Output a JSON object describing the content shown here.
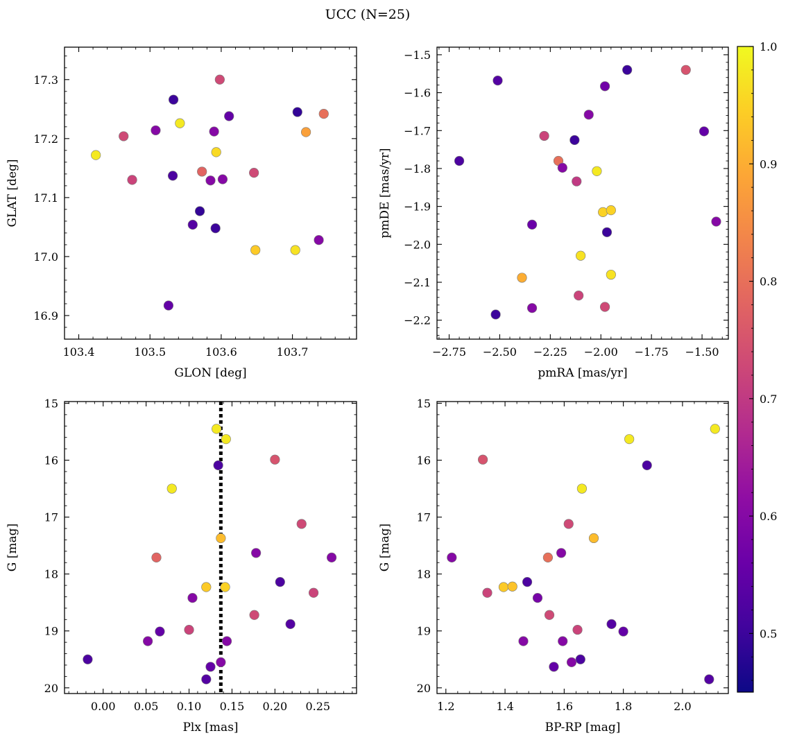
{
  "figure": {
    "title": "UCC (N=25)"
  },
  "colorbar": {
    "range": [
      0.45,
      1.0
    ],
    "ticks": [
      "0.5",
      "0.6",
      "0.7",
      "0.8",
      "0.9",
      "1.0"
    ],
    "colormap": "plasma"
  },
  "chart_data": [
    {
      "type": "scatter",
      "xlabel": "GLON [deg]",
      "ylabel": "GLAT [deg]",
      "xlim": [
        103.38,
        103.79
      ],
      "ylim": [
        16.86,
        17.355
      ],
      "xticks": [
        "103.4",
        "103.5",
        "103.6",
        "103.7"
      ],
      "yticks": [
        "16.9",
        "17.0",
        "17.1",
        "17.2",
        "17.3"
      ],
      "invert_y": false,
      "points": [
        {
          "x": 103.424,
          "y": 17.172,
          "c": 0.98
        },
        {
          "x": 103.463,
          "y": 17.204,
          "c": 0.73
        },
        {
          "x": 103.475,
          "y": 17.13,
          "c": 0.72
        },
        {
          "x": 103.508,
          "y": 17.214,
          "c": 0.6
        },
        {
          "x": 103.526,
          "y": 16.917,
          "c": 0.55
        },
        {
          "x": 103.532,
          "y": 17.137,
          "c": 0.52
        },
        {
          "x": 103.533,
          "y": 17.266,
          "c": 0.5
        },
        {
          "x": 103.542,
          "y": 17.226,
          "c": 0.98
        },
        {
          "x": 103.56,
          "y": 17.054,
          "c": 0.53
        },
        {
          "x": 103.57,
          "y": 17.077,
          "c": 0.49
        },
        {
          "x": 103.573,
          "y": 17.144,
          "c": 0.78
        },
        {
          "x": 103.585,
          "y": 17.129,
          "c": 0.6
        },
        {
          "x": 103.59,
          "y": 17.212,
          "c": 0.6
        },
        {
          "x": 103.592,
          "y": 17.048,
          "c": 0.5
        },
        {
          "x": 103.593,
          "y": 17.177,
          "c": 0.96
        },
        {
          "x": 103.598,
          "y": 17.3,
          "c": 0.73
        },
        {
          "x": 103.602,
          "y": 17.131,
          "c": 0.6
        },
        {
          "x": 103.611,
          "y": 17.238,
          "c": 0.55
        },
        {
          "x": 103.646,
          "y": 17.142,
          "c": 0.73
        },
        {
          "x": 103.648,
          "y": 17.011,
          "c": 0.94
        },
        {
          "x": 103.704,
          "y": 17.011,
          "c": 0.97
        },
        {
          "x": 103.707,
          "y": 17.245,
          "c": 0.49
        },
        {
          "x": 103.719,
          "y": 17.211,
          "c": 0.88
        },
        {
          "x": 103.737,
          "y": 17.028,
          "c": 0.6
        },
        {
          "x": 103.744,
          "y": 17.242,
          "c": 0.8
        }
      ]
    },
    {
      "type": "scatter",
      "xlabel": "pmRA [mas/yr]",
      "ylabel": "pmDE [mas/yr]",
      "xlim": [
        -2.81,
        -1.37
      ],
      "ylim": [
        -2.25,
        -1.48
      ],
      "xticks": [
        "−2.75",
        "−2.50",
        "−2.25",
        "−2.00",
        "−1.75",
        "−1.50"
      ],
      "yticks": [
        "−2.2",
        "−2.1",
        "−2.0",
        "−1.9",
        "−1.8",
        "−1.7",
        "−1.6",
        "−1.5"
      ],
      "invert_y": false,
      "points": [
        {
          "x": -2.7,
          "y": -1.78,
          "c": 0.52
        },
        {
          "x": -2.51,
          "y": -1.568,
          "c": 0.53
        },
        {
          "x": -2.52,
          "y": -2.185,
          "c": 0.5
        },
        {
          "x": -2.39,
          "y": -2.088,
          "c": 0.9
        },
        {
          "x": -2.34,
          "y": -1.948,
          "c": 0.56
        },
        {
          "x": -2.34,
          "y": -2.168,
          "c": 0.6
        },
        {
          "x": -2.28,
          "y": -1.714,
          "c": 0.72
        },
        {
          "x": -2.21,
          "y": -1.78,
          "c": 0.8
        },
        {
          "x": -2.19,
          "y": -1.798,
          "c": 0.6
        },
        {
          "x": -2.13,
          "y": -1.725,
          "c": 0.5
        },
        {
          "x": -2.12,
          "y": -1.834,
          "c": 0.7
        },
        {
          "x": -2.11,
          "y": -2.135,
          "c": 0.72
        },
        {
          "x": -2.1,
          "y": -2.03,
          "c": 0.97
        },
        {
          "x": -2.06,
          "y": -1.658,
          "c": 0.6
        },
        {
          "x": -2.02,
          "y": -1.807,
          "c": 0.98
        },
        {
          "x": -1.99,
          "y": -1.915,
          "c": 0.95
        },
        {
          "x": -1.98,
          "y": -1.583,
          "c": 0.57
        },
        {
          "x": -1.98,
          "y": -2.165,
          "c": 0.73
        },
        {
          "x": -1.97,
          "y": -1.968,
          "c": 0.5
        },
        {
          "x": -1.95,
          "y": -1.91,
          "c": 0.95
        },
        {
          "x": -1.95,
          "y": -2.08,
          "c": 0.97
        },
        {
          "x": -1.87,
          "y": -1.54,
          "c": 0.5
        },
        {
          "x": -1.58,
          "y": -1.54,
          "c": 0.75
        },
        {
          "x": -1.49,
          "y": -1.702,
          "c": 0.55
        },
        {
          "x": -1.43,
          "y": -1.94,
          "c": 0.6
        }
      ]
    },
    {
      "type": "scatter",
      "xlabel": "Plx [mas]",
      "ylabel": "G [mag]",
      "xlim": [
        -0.045,
        0.295
      ],
      "ylim": [
        20.1,
        14.97
      ],
      "xticks": [
        "0.00",
        "0.05",
        "0.10",
        "0.15",
        "0.20",
        "0.25"
      ],
      "yticks": [
        "15",
        "16",
        "17",
        "18",
        "19",
        "20"
      ],
      "invert_y": true,
      "vline": 0.137,
      "points": [
        {
          "x": -0.018,
          "y": 19.5,
          "c": 0.52
        },
        {
          "x": 0.052,
          "y": 19.18,
          "c": 0.6
        },
        {
          "x": 0.062,
          "y": 17.71,
          "c": 0.78
        },
        {
          "x": 0.066,
          "y": 19.01,
          "c": 0.55
        },
        {
          "x": 0.08,
          "y": 16.5,
          "c": 0.98
        },
        {
          "x": 0.1,
          "y": 18.98,
          "c": 0.72
        },
        {
          "x": 0.104,
          "y": 18.42,
          "c": 0.6
        },
        {
          "x": 0.12,
          "y": 18.23,
          "c": 0.94
        },
        {
          "x": 0.12,
          "y": 19.85,
          "c": 0.53
        },
        {
          "x": 0.125,
          "y": 19.63,
          "c": 0.55
        },
        {
          "x": 0.132,
          "y": 15.45,
          "c": 0.98
        },
        {
          "x": 0.134,
          "y": 16.09,
          "c": 0.52
        },
        {
          "x": 0.137,
          "y": 17.37,
          "c": 0.92
        },
        {
          "x": 0.137,
          "y": 19.55,
          "c": 0.6
        },
        {
          "x": 0.142,
          "y": 18.23,
          "c": 0.95
        },
        {
          "x": 0.143,
          "y": 15.63,
          "c": 0.98
        },
        {
          "x": 0.144,
          "y": 19.18,
          "c": 0.6
        },
        {
          "x": 0.176,
          "y": 18.72,
          "c": 0.73
        },
        {
          "x": 0.178,
          "y": 17.63,
          "c": 0.6
        },
        {
          "x": 0.2,
          "y": 15.99,
          "c": 0.75
        },
        {
          "x": 0.206,
          "y": 18.14,
          "c": 0.52
        },
        {
          "x": 0.218,
          "y": 18.88,
          "c": 0.53
        },
        {
          "x": 0.231,
          "y": 17.12,
          "c": 0.73
        },
        {
          "x": 0.245,
          "y": 18.33,
          "c": 0.72
        },
        {
          "x": 0.266,
          "y": 17.71,
          "c": 0.6
        }
      ]
    },
    {
      "type": "scatter",
      "xlabel": "BP-RP [mag]",
      "ylabel": "G [mag]",
      "xlim": [
        1.17,
        2.155
      ],
      "ylim": [
        20.1,
        14.97
      ],
      "xticks": [
        "1.2",
        "1.4",
        "1.6",
        "1.8",
        "2.0"
      ],
      "yticks": [
        "15",
        "16",
        "17",
        "18",
        "19",
        "20"
      ],
      "invert_y": true,
      "points": [
        {
          "x": 1.22,
          "y": 17.71,
          "c": 0.6
        },
        {
          "x": 1.325,
          "y": 15.99,
          "c": 0.75
        },
        {
          "x": 1.34,
          "y": 18.33,
          "c": 0.72
        },
        {
          "x": 1.395,
          "y": 18.23,
          "c": 0.94
        },
        {
          "x": 1.425,
          "y": 18.22,
          "c": 0.93
        },
        {
          "x": 1.462,
          "y": 19.18,
          "c": 0.6
        },
        {
          "x": 1.475,
          "y": 18.14,
          "c": 0.52
        },
        {
          "x": 1.51,
          "y": 18.42,
          "c": 0.58
        },
        {
          "x": 1.545,
          "y": 17.71,
          "c": 0.8
        },
        {
          "x": 1.55,
          "y": 18.72,
          "c": 0.73
        },
        {
          "x": 1.565,
          "y": 19.63,
          "c": 0.55
        },
        {
          "x": 1.59,
          "y": 17.63,
          "c": 0.6
        },
        {
          "x": 1.595,
          "y": 19.18,
          "c": 0.6
        },
        {
          "x": 1.615,
          "y": 17.12,
          "c": 0.73
        },
        {
          "x": 1.625,
          "y": 19.55,
          "c": 0.6
        },
        {
          "x": 1.645,
          "y": 18.98,
          "c": 0.72
        },
        {
          "x": 1.655,
          "y": 19.5,
          "c": 0.52
        },
        {
          "x": 1.66,
          "y": 16.5,
          "c": 0.98
        },
        {
          "x": 1.7,
          "y": 17.37,
          "c": 0.92
        },
        {
          "x": 1.76,
          "y": 18.88,
          "c": 0.53
        },
        {
          "x": 1.8,
          "y": 19.01,
          "c": 0.55
        },
        {
          "x": 1.82,
          "y": 15.63,
          "c": 0.98
        },
        {
          "x": 1.88,
          "y": 16.09,
          "c": 0.52
        },
        {
          "x": 2.09,
          "y": 19.85,
          "c": 0.53
        },
        {
          "x": 2.11,
          "y": 15.45,
          "c": 0.98
        }
      ]
    }
  ]
}
